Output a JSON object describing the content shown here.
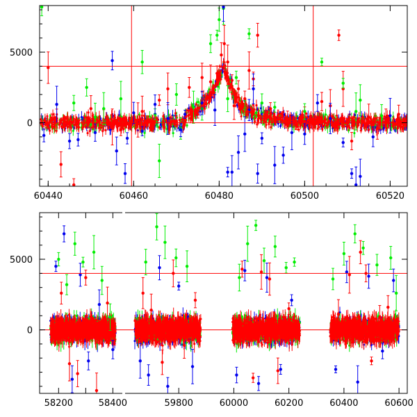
{
  "chart_data": [
    {
      "type": "scatter",
      "title": "",
      "xlabel": "",
      "ylabel": "",
      "xlim": [
        60438,
        60524
      ],
      "ylim": [
        -4500,
        8300
      ],
      "xticks": [
        60440,
        60460,
        60480,
        60500,
        60520
      ],
      "xtick_labels": [
        "60440",
        "60460",
        "60480",
        "60500",
        "60520"
      ],
      "yticks": [
        0,
        5000
      ],
      "ytick_labels": [
        "0",
        "5000"
      ],
      "hlines": [
        0,
        4000
      ],
      "vlines": [
        60459.5,
        60502
      ],
      "model_curve": [
        [
          60472,
          400
        ],
        [
          60476,
          1200
        ],
        [
          60479,
          2500
        ],
        [
          60481,
          4000
        ],
        [
          60482.5,
          2800
        ],
        [
          60484.5,
          1300
        ],
        [
          60488,
          600
        ],
        [
          60494,
          200
        ],
        [
          60505,
          60
        ]
      ],
      "segments": [
        [
          60438,
          60524
        ]
      ],
      "series": [
        {
          "color": "#ff0000",
          "points": [
            [
              60440,
              3900
            ],
            [
              60443,
              -2950
            ],
            [
              60446,
              -4400
            ],
            [
              60450,
              1000
            ],
            [
              60453,
              200
            ],
            [
              60457,
              -500
            ],
            [
              60462,
              800
            ],
            [
              60466,
              1600
            ],
            [
              60468,
              2400
            ],
            [
              60470,
              100
            ],
            [
              60473,
              2500
            ],
            [
              60476,
              3200
            ],
            [
              60478,
              2900
            ],
            [
              60479.5,
              3500
            ],
            [
              60480.5,
              4800
            ],
            [
              60481.2,
              5600
            ],
            [
              60482,
              4300
            ],
            [
              60483,
              3000
            ],
            [
              60484.5,
              2400
            ],
            [
              60486,
              1700
            ],
            [
              60487,
              3700
            ],
            [
              60488,
              3100
            ],
            [
              60489,
              6200
            ],
            [
              60492,
              1000
            ],
            [
              60496,
              300
            ],
            [
              60500,
              400
            ],
            [
              60504,
              1500
            ],
            [
              60506,
              1200
            ],
            [
              60508,
              6200
            ],
            [
              60509,
              2400
            ],
            [
              60511,
              -1300
            ],
            [
              60515,
              400
            ],
            [
              60519,
              200
            ],
            [
              60522,
              600
            ],
            [
              60442,
              300
            ],
            [
              60455,
              -300
            ],
            [
              60461,
              200
            ],
            [
              60475,
              600
            ],
            [
              60483.5,
              1200
            ],
            [
              60498,
              -200
            ],
            [
              60517,
              -400
            ]
          ]
        },
        {
          "color": "#00ee00",
          "points": [
            [
              60438.5,
              8200
            ],
            [
              60446,
              1400
            ],
            [
              60449,
              2500
            ],
            [
              60451,
              400
            ],
            [
              60453,
              1000
            ],
            [
              60457,
              1700
            ],
            [
              60462,
              4300
            ],
            [
              60466,
              -2700
            ],
            [
              60470,
              2000
            ],
            [
              60474,
              1100
            ],
            [
              60476,
              1000
            ],
            [
              60478,
              5600
            ],
            [
              60479.5,
              6200
            ],
            [
              60480,
              7300
            ],
            [
              60481,
              8100
            ],
            [
              60482,
              1700
            ],
            [
              60484,
              3200
            ],
            [
              60486,
              1000
            ],
            [
              60487,
              6300
            ],
            [
              60490,
              1400
            ],
            [
              60493,
              1100
            ],
            [
              60500,
              800
            ],
            [
              60504,
              4300
            ],
            [
              60509,
              2800
            ],
            [
              60512,
              800
            ],
            [
              60513,
              1600
            ],
            [
              60518,
              500
            ],
            [
              60465,
              600
            ],
            [
              60471,
              -400
            ]
          ]
        },
        {
          "color": "#0000ee",
          "points": [
            [
              60439,
              -900
            ],
            [
              60442,
              1300
            ],
            [
              60445,
              -1300
            ],
            [
              60447,
              -1200
            ],
            [
              60451,
              -700
            ],
            [
              60455,
              4400
            ],
            [
              60456,
              -2000
            ],
            [
              60458,
              -3600
            ],
            [
              60460,
              700
            ],
            [
              60462,
              -600
            ],
            [
              60465,
              1300
            ],
            [
              60468,
              300
            ],
            [
              60472,
              600
            ],
            [
              60476,
              1400
            ],
            [
              60479,
              900
            ],
            [
              60481,
              8200
            ],
            [
              60482,
              -3500
            ],
            [
              60483,
              -3500
            ],
            [
              60484.5,
              -2100
            ],
            [
              60487,
              900
            ],
            [
              60488,
              2400
            ],
            [
              60489,
              -3600
            ],
            [
              60490,
              -1100
            ],
            [
              60493,
              -3000
            ],
            [
              60495,
              -2300
            ],
            [
              60497,
              -700
            ],
            [
              60500,
              -800
            ],
            [
              60503,
              1400
            ],
            [
              60506,
              300
            ],
            [
              60509,
              -1400
            ],
            [
              60511,
              -3600
            ],
            [
              60512,
              -4400
            ],
            [
              60513,
              -3800
            ],
            [
              60516,
              -1000
            ],
            [
              60520,
              500
            ],
            [
              60458.5,
              -1100
            ],
            [
              60471,
              -500
            ],
            [
              60486,
              -800
            ]
          ]
        }
      ]
    },
    {
      "type": "scatter",
      "title": "",
      "xlabel": "",
      "ylabel": "",
      "xlim": [
        58130,
        60630
      ],
      "ylim": [
        -4500,
        8300
      ],
      "break_note": "x-axis compressed between 58440 and 59600 (tick labels 59800 and above follow the right part)",
      "xticks": [
        58200,
        58300,
        58400,
        59800,
        60000,
        60200,
        60400,
        60600
      ],
      "xtick_labels": [
        "58200",
        "",
        "58400",
        "59800",
        "60000",
        "60200",
        "60400",
        "60600"
      ],
      "yticks": [
        0,
        5000
      ],
      "ytick_labels": [
        "0",
        "5000"
      ],
      "hlines": [
        0,
        4000
      ],
      "segments": [
        [
          58170,
          58410
        ],
        [
          59640,
          59880
        ],
        [
          59995,
          60240
        ],
        [
          60350,
          60600
        ]
      ],
      "series": [
        {
          "color": "#ff0000",
          "points": [
            [
              58210,
              2600
            ],
            [
              58240,
              -2400
            ],
            [
              58270,
              -3100
            ],
            [
              58300,
              3700
            ],
            [
              58340,
              -4300
            ],
            [
              58380,
              1900
            ],
            [
              59670,
              2600
            ],
            [
              59700,
              1400
            ],
            [
              59740,
              -2300
            ],
            [
              59780,
              4000
            ],
            [
              59820,
              -1100
            ],
            [
              59860,
              2100
            ],
            [
              60030,
              4300
            ],
            [
              60070,
              -3400
            ],
            [
              60100,
              4100
            ],
            [
              60130,
              3600
            ],
            [
              60160,
              -2900
            ],
            [
              60200,
              1500
            ],
            [
              60380,
              1100
            ],
            [
              60420,
              3900
            ],
            [
              60460,
              5500
            ],
            [
              60480,
              4000
            ],
            [
              60500,
              -2200
            ],
            [
              60530,
              900
            ],
            [
              60560,
              1600
            ]
          ]
        },
        {
          "color": "#00ee00",
          "points": [
            [
              58200,
              5000
            ],
            [
              58230,
              3200
            ],
            [
              58260,
              6100
            ],
            [
              58290,
              4800
            ],
            [
              58330,
              5500
            ],
            [
              58360,
              3500
            ],
            [
              58390,
              900
            ],
            [
              59680,
              4800
            ],
            [
              59720,
              7300
            ],
            [
              59750,
              6200
            ],
            [
              59790,
              5100
            ],
            [
              59830,
              4500
            ],
            [
              60020,
              3700
            ],
            [
              60050,
              6100
            ],
            [
              60080,
              7400
            ],
            [
              60110,
              4900
            ],
            [
              60150,
              5900
            ],
            [
              60190,
              4400
            ],
            [
              60220,
              4800
            ],
            [
              60360,
              3600
            ],
            [
              60400,
              5400
            ],
            [
              60440,
              6800
            ],
            [
              60470,
              5800
            ],
            [
              60520,
              4600
            ],
            [
              60570,
              5100
            ],
            [
              60590,
              2600
            ]
          ]
        },
        {
          "color": "#0000ee",
          "points": [
            [
              58190,
              4500
            ],
            [
              58220,
              6800
            ],
            [
              58250,
              -3500
            ],
            [
              58280,
              3900
            ],
            [
              58310,
              -2200
            ],
            [
              58350,
              1800
            ],
            [
              58400,
              -1400
            ],
            [
              59660,
              -2200
            ],
            [
              59690,
              -3200
            ],
            [
              59730,
              4400
            ],
            [
              59760,
              -4000
            ],
            [
              59800,
              3100
            ],
            [
              59850,
              -2600
            ],
            [
              60010,
              -3200
            ],
            [
              60040,
              4200
            ],
            [
              60090,
              -3800
            ],
            [
              60120,
              3700
            ],
            [
              60170,
              -2800
            ],
            [
              60210,
              2100
            ],
            [
              60370,
              -2800
            ],
            [
              60410,
              4100
            ],
            [
              60450,
              -3700
            ],
            [
              60490,
              3800
            ],
            [
              60540,
              -1500
            ],
            [
              60580,
              3500
            ]
          ]
        }
      ]
    }
  ]
}
